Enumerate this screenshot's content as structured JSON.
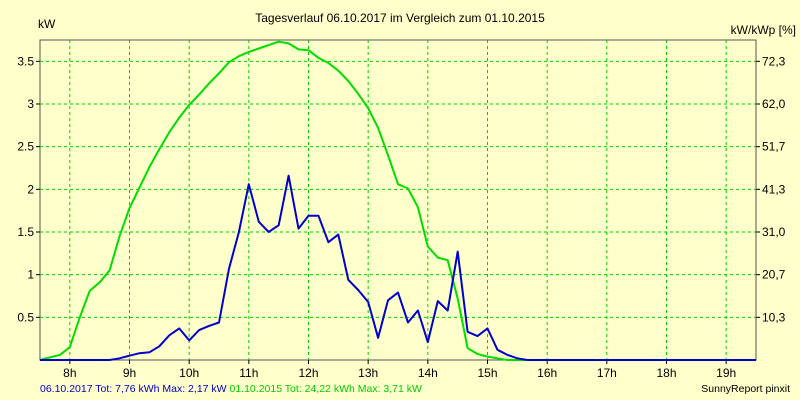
{
  "chart_data": {
    "type": "line",
    "title": "Tagesverlauf 06.10.2017 im Vergleich zum 01.10.2015",
    "ylabel": "kW",
    "y2label": "kW/kWp [%]",
    "xlim": [
      7.5,
      19.5
    ],
    "ylim": [
      0,
      3.75
    ],
    "grid": true,
    "x_ticks": [
      8,
      9,
      10,
      11,
      12,
      13,
      14,
      15,
      16,
      17,
      18,
      19
    ],
    "x_tick_labels": [
      "8h",
      "9h",
      "10h",
      "11h",
      "12h",
      "13h",
      "14h",
      "15h",
      "16h",
      "17h",
      "18h",
      "19h"
    ],
    "y_ticks": [
      0.5,
      1,
      1.5,
      2,
      2.5,
      3,
      3.5
    ],
    "y_tick_labels": [
      "0.5",
      "1",
      "1.5",
      "2",
      "2.5",
      "3",
      "3.5"
    ],
    "y2_tick_labels": [
      "10,3",
      "20,7",
      "31,0",
      "41,3",
      "51,7",
      "62,0",
      "72,3"
    ],
    "x": [
      7.5,
      7.667,
      7.833,
      8.0,
      8.167,
      8.333,
      8.5,
      8.667,
      8.833,
      9.0,
      9.167,
      9.333,
      9.5,
      9.667,
      9.833,
      10.0,
      10.167,
      10.333,
      10.5,
      10.667,
      10.833,
      11.0,
      11.167,
      11.333,
      11.5,
      11.667,
      11.833,
      12.0,
      12.167,
      12.333,
      12.5,
      12.667,
      12.833,
      13.0,
      13.167,
      13.333,
      13.5,
      13.667,
      13.833,
      14.0,
      14.167,
      14.333,
      14.5,
      14.667,
      14.833,
      15.0,
      15.167,
      15.333,
      15.5,
      15.667,
      15.833,
      16.0,
      16.167,
      16.333,
      16.5,
      16.667,
      16.833,
      17.0,
      17.167,
      17.333,
      17.5,
      17.667,
      17.833,
      18.0,
      18.167,
      18.333,
      18.5,
      18.667,
      18.833,
      19.0,
      19.167,
      19.333,
      19.5
    ],
    "series": [
      {
        "name": "06.10.2017",
        "color": "#0000cc",
        "values": [
          0,
          0,
          0,
          0,
          0,
          0,
          0,
          0,
          0.02,
          0.05,
          0.08,
          0.09,
          0.16,
          0.29,
          0.37,
          0.23,
          0.35,
          0.4,
          0.44,
          1.07,
          1.5,
          2.06,
          1.62,
          1.5,
          1.58,
          2.16,
          1.54,
          1.69,
          1.69,
          1.38,
          1.47,
          0.94,
          0.82,
          0.68,
          0.26,
          0.7,
          0.79,
          0.44,
          0.58,
          0.21,
          0.69,
          0.58,
          1.27,
          0.33,
          0.28,
          0.37,
          0.12,
          0.06,
          0.02,
          0,
          0,
          0,
          0,
          0,
          0,
          0,
          0,
          0,
          0,
          0,
          0,
          0,
          0,
          0,
          0,
          0,
          0,
          0,
          0,
          0,
          0,
          0,
          0
        ]
      },
      {
        "name": "01.10.2015",
        "color": "#00dd00",
        "values": [
          0,
          0.03,
          0.06,
          0.15,
          0.5,
          0.81,
          0.91,
          1.05,
          1.45,
          1.78,
          2.02,
          2.26,
          2.47,
          2.67,
          2.84,
          2.99,
          3.11,
          3.24,
          3.36,
          3.49,
          3.56,
          3.61,
          3.65,
          3.69,
          3.73,
          3.71,
          3.64,
          3.63,
          3.54,
          3.48,
          3.39,
          3.27,
          3.12,
          2.95,
          2.72,
          2.4,
          2.06,
          2.01,
          1.79,
          1.33,
          1.2,
          1.17,
          0.72,
          0.14,
          0.07,
          0.04,
          0.02,
          0,
          0,
          0,
          0,
          0,
          0,
          0,
          0,
          0,
          0,
          0,
          0,
          0,
          0,
          0,
          0,
          0,
          0,
          0,
          0,
          0,
          0,
          0,
          0,
          0,
          0
        ]
      }
    ]
  },
  "footer": {
    "blue_text": "06.10.2017 Tot: 7,76 kWh Max: 2,17 kW",
    "green_text": "01.10.2015 Tot: 24,22 kWh Max: 3,71 kW",
    "right_text": "SunnyReport pinxit"
  }
}
